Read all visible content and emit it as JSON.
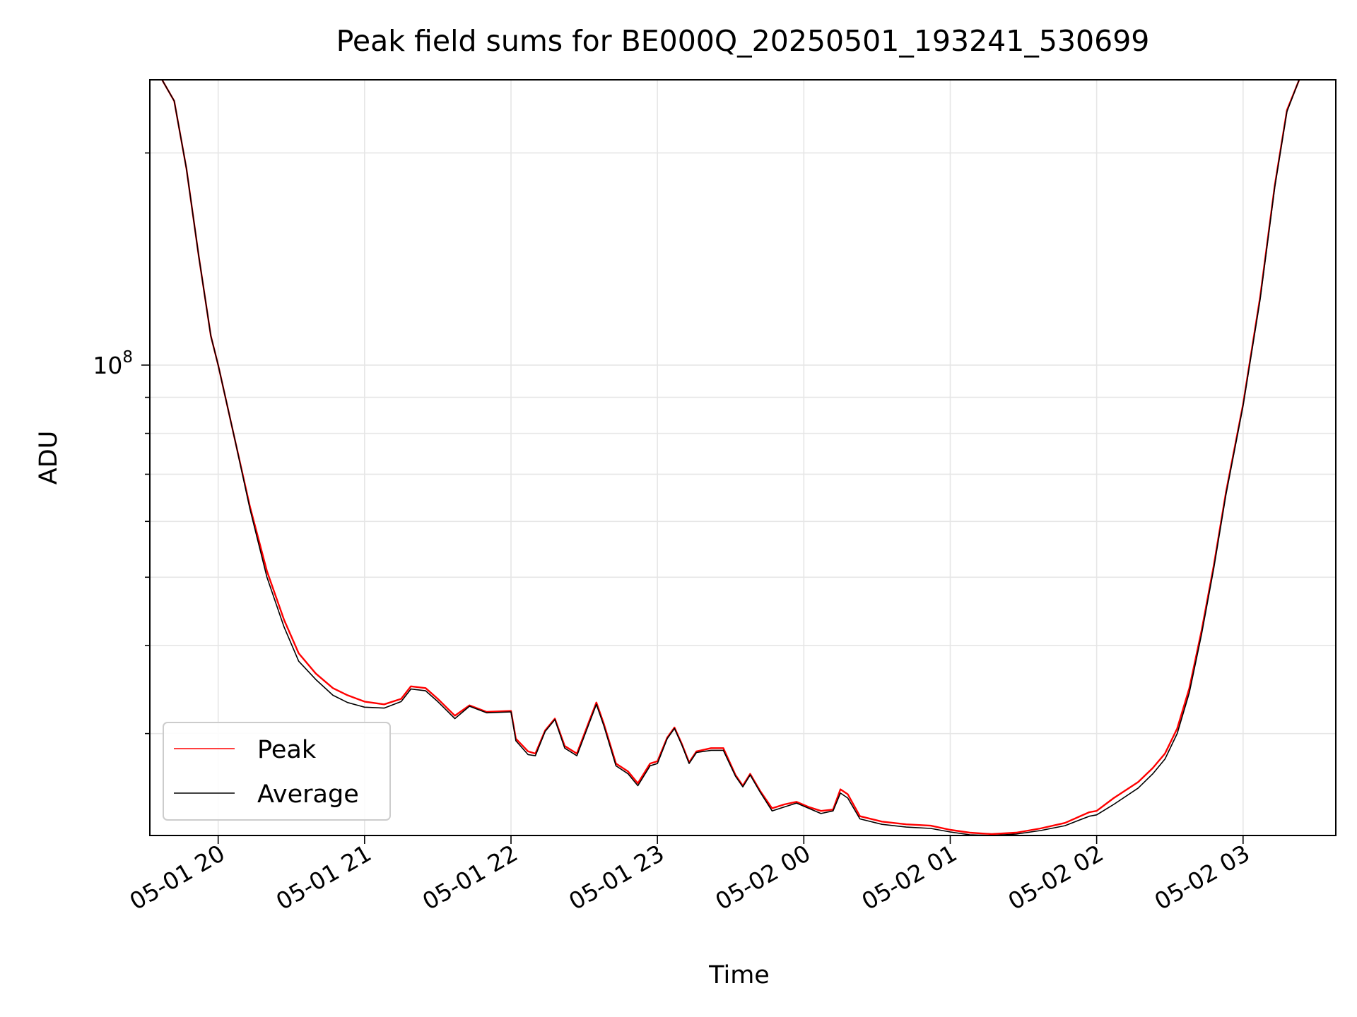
{
  "chart_data": {
    "type": "line",
    "title": "Peak field sums for BE000Q_20250501_193241_530699",
    "xlabel": "Time",
    "ylabel": "ADU",
    "y_scale": "log",
    "y_tick_labels": [
      {
        "value": 100000000,
        "label": "10^8"
      }
    ],
    "x_tick_labels": [
      "05-01 20",
      "05-01 21",
      "05-01 22",
      "05-01 23",
      "05-02 00",
      "05-02 01",
      "05-02 02",
      "05-02 03"
    ],
    "xlim": [
      "2025-05-01 19:32",
      "2025-05-02 03:38"
    ],
    "ylim": [
      21500000,
      254000000
    ],
    "grid": true,
    "legend": {
      "position": "lower-left"
    },
    "series": [
      {
        "name": "Peak",
        "color": "#ff0000",
        "points": [
          [
            "2025-05-01 19:37",
            254000000
          ],
          [
            "2025-05-01 19:42",
            237000000
          ],
          [
            "2025-05-01 19:47",
            190000000
          ],
          [
            "2025-05-01 19:52",
            143000000
          ],
          [
            "2025-05-01 19:57",
            110000000
          ],
          [
            "2025-05-01 20:00",
            100000000
          ],
          [
            "2025-05-01 20:07",
            78000000
          ],
          [
            "2025-05-01 20:13",
            63000000
          ],
          [
            "2025-05-01 20:20",
            51000000
          ],
          [
            "2025-05-01 20:27",
            43500000
          ],
          [
            "2025-05-01 20:33",
            39000000
          ],
          [
            "2025-05-01 20:40",
            36500000
          ],
          [
            "2025-05-01 20:47",
            34800000
          ],
          [
            "2025-05-01 20:53",
            34000000
          ],
          [
            "2025-05-01 21:00",
            33300000
          ],
          [
            "2025-05-01 21:08",
            33000000
          ],
          [
            "2025-05-01 21:15",
            33600000
          ],
          [
            "2025-05-01 21:19",
            35000000
          ],
          [
            "2025-05-01 21:25",
            34800000
          ],
          [
            "2025-05-01 21:30",
            33600000
          ],
          [
            "2025-05-01 21:37",
            31800000
          ],
          [
            "2025-05-01 21:43",
            32900000
          ],
          [
            "2025-05-01 21:50",
            32200000
          ],
          [
            "2025-05-01 22:00",
            32300000
          ],
          [
            "2025-05-01 22:02",
            29500000
          ],
          [
            "2025-05-01 22:07",
            28300000
          ],
          [
            "2025-05-01 22:10",
            28100000
          ],
          [
            "2025-05-01 22:14",
            30300000
          ],
          [
            "2025-05-01 22:18",
            31500000
          ],
          [
            "2025-05-01 22:22",
            28800000
          ],
          [
            "2025-05-01 22:27",
            28100000
          ],
          [
            "2025-05-01 22:32",
            31200000
          ],
          [
            "2025-05-01 22:35",
            33200000
          ],
          [
            "2025-05-01 22:38",
            31000000
          ],
          [
            "2025-05-01 22:43",
            27200000
          ],
          [
            "2025-05-01 22:48",
            26500000
          ],
          [
            "2025-05-01 22:52",
            25500000
          ],
          [
            "2025-05-01 22:57",
            27200000
          ],
          [
            "2025-05-01 23:00",
            27400000
          ],
          [
            "2025-05-01 23:04",
            29600000
          ],
          [
            "2025-05-01 23:07",
            30600000
          ],
          [
            "2025-05-01 23:10",
            29000000
          ],
          [
            "2025-05-01 23:13",
            27300000
          ],
          [
            "2025-05-01 23:16",
            28300000
          ],
          [
            "2025-05-01 23:22",
            28600000
          ],
          [
            "2025-05-01 23:27",
            28600000
          ],
          [
            "2025-05-01 23:32",
            26200000
          ],
          [
            "2025-05-01 23:35",
            25300000
          ],
          [
            "2025-05-01 23:38",
            26300000
          ],
          [
            "2025-05-01 23:42",
            24900000
          ],
          [
            "2025-05-01 23:47",
            23500000
          ],
          [
            "2025-05-01 23:52",
            23800000
          ],
          [
            "2025-05-01 23:57",
            24000000
          ],
          [
            "2025-05-02 00:02",
            23600000
          ],
          [
            "2025-05-02 00:07",
            23300000
          ],
          [
            "2025-05-02 00:12",
            23400000
          ],
          [
            "2025-05-02 00:15",
            25000000
          ],
          [
            "2025-05-02 00:18",
            24600000
          ],
          [
            "2025-05-02 00:23",
            22900000
          ],
          [
            "2025-05-02 00:32",
            22500000
          ],
          [
            "2025-05-02 00:42",
            22300000
          ],
          [
            "2025-05-02 00:52",
            22200000
          ],
          [
            "2025-05-02 01:00",
            21900000
          ],
          [
            "2025-05-02 01:08",
            21700000
          ],
          [
            "2025-05-02 01:17",
            21600000
          ],
          [
            "2025-05-02 01:27",
            21700000
          ],
          [
            "2025-05-02 01:37",
            22000000
          ],
          [
            "2025-05-02 01:47",
            22400000
          ],
          [
            "2025-05-02 01:57",
            23200000
          ],
          [
            "2025-05-02 02:00",
            23300000
          ],
          [
            "2025-05-02 02:07",
            24300000
          ],
          [
            "2025-05-02 02:17",
            25600000
          ],
          [
            "2025-05-02 02:23",
            26800000
          ],
          [
            "2025-05-02 02:28",
            28100000
          ],
          [
            "2025-05-02 02:33",
            30500000
          ],
          [
            "2025-05-02 02:38",
            34800000
          ],
          [
            "2025-05-02 02:43",
            42000000
          ],
          [
            "2025-05-02 02:48",
            52000000
          ],
          [
            "2025-05-02 02:53",
            66000000
          ],
          [
            "2025-05-02 03:00",
            88000000
          ],
          [
            "2025-05-02 03:07",
            125000000
          ],
          [
            "2025-05-02 03:13",
            180000000
          ],
          [
            "2025-05-02 03:18",
            230000000
          ],
          [
            "2025-05-02 03:23",
            254000000
          ]
        ]
      },
      {
        "name": "Average",
        "color": "#000000",
        "points": [
          [
            "2025-05-01 19:37",
            254000000
          ],
          [
            "2025-05-01 19:42",
            237000000
          ],
          [
            "2025-05-01 19:47",
            190000000
          ],
          [
            "2025-05-01 19:52",
            143000000
          ],
          [
            "2025-05-01 19:57",
            110000000
          ],
          [
            "2025-05-01 20:00",
            100000000
          ],
          [
            "2025-05-01 20:07",
            78000000
          ],
          [
            "2025-05-01 20:13",
            62500000
          ],
          [
            "2025-05-01 20:20",
            50000000
          ],
          [
            "2025-05-01 20:27",
            42500000
          ],
          [
            "2025-05-01 20:33",
            38000000
          ],
          [
            "2025-05-01 20:40",
            35800000
          ],
          [
            "2025-05-01 20:47",
            34000000
          ],
          [
            "2025-05-01 20:53",
            33200000
          ],
          [
            "2025-05-01 21:00",
            32700000
          ],
          [
            "2025-05-01 21:08",
            32600000
          ],
          [
            "2025-05-01 21:15",
            33300000
          ],
          [
            "2025-05-01 21:19",
            34700000
          ],
          [
            "2025-05-01 21:25",
            34500000
          ],
          [
            "2025-05-01 21:30",
            33300000
          ],
          [
            "2025-05-01 21:37",
            31500000
          ],
          [
            "2025-05-01 21:43",
            32800000
          ],
          [
            "2025-05-01 21:50",
            32100000
          ],
          [
            "2025-05-01 22:00",
            32200000
          ],
          [
            "2025-05-01 22:02",
            29300000
          ],
          [
            "2025-05-01 22:07",
            28000000
          ],
          [
            "2025-05-01 22:10",
            27900000
          ],
          [
            "2025-05-01 22:14",
            30200000
          ],
          [
            "2025-05-01 22:18",
            31400000
          ],
          [
            "2025-05-01 22:22",
            28600000
          ],
          [
            "2025-05-01 22:27",
            27900000
          ],
          [
            "2025-05-01 22:32",
            31000000
          ],
          [
            "2025-05-01 22:35",
            33000000
          ],
          [
            "2025-05-01 22:38",
            30800000
          ],
          [
            "2025-05-01 22:43",
            27000000
          ],
          [
            "2025-05-01 22:48",
            26300000
          ],
          [
            "2025-05-01 22:52",
            25300000
          ],
          [
            "2025-05-01 22:57",
            27000000
          ],
          [
            "2025-05-01 23:00",
            27200000
          ],
          [
            "2025-05-01 23:04",
            29500000
          ],
          [
            "2025-05-01 23:07",
            30500000
          ],
          [
            "2025-05-01 23:10",
            28900000
          ],
          [
            "2025-05-01 23:13",
            27200000
          ],
          [
            "2025-05-01 23:16",
            28200000
          ],
          [
            "2025-05-01 23:22",
            28400000
          ],
          [
            "2025-05-01 23:27",
            28400000
          ],
          [
            "2025-05-01 23:32",
            26100000
          ],
          [
            "2025-05-01 23:35",
            25200000
          ],
          [
            "2025-05-01 23:38",
            26200000
          ],
          [
            "2025-05-01 23:42",
            24800000
          ],
          [
            "2025-05-01 23:47",
            23300000
          ],
          [
            "2025-05-01 23:52",
            23600000
          ],
          [
            "2025-05-01 23:57",
            23900000
          ],
          [
            "2025-05-02 00:02",
            23500000
          ],
          [
            "2025-05-02 00:07",
            23100000
          ],
          [
            "2025-05-02 00:12",
            23300000
          ],
          [
            "2025-05-02 00:15",
            24700000
          ],
          [
            "2025-05-02 00:18",
            24300000
          ],
          [
            "2025-05-02 00:23",
            22700000
          ],
          [
            "2025-05-02 00:32",
            22300000
          ],
          [
            "2025-05-02 00:42",
            22100000
          ],
          [
            "2025-05-02 00:52",
            22000000
          ],
          [
            "2025-05-02 01:00",
            21750000
          ],
          [
            "2025-05-02 01:08",
            21550000
          ],
          [
            "2025-05-02 01:17",
            21500000
          ],
          [
            "2025-05-02 01:27",
            21600000
          ],
          [
            "2025-05-02 01:37",
            21850000
          ],
          [
            "2025-05-02 01:47",
            22200000
          ],
          [
            "2025-05-02 01:57",
            22900000
          ],
          [
            "2025-05-02 02:00",
            23000000
          ],
          [
            "2025-05-02 02:07",
            23800000
          ],
          [
            "2025-05-02 02:17",
            25100000
          ],
          [
            "2025-05-02 02:23",
            26300000
          ],
          [
            "2025-05-02 02:28",
            27600000
          ],
          [
            "2025-05-02 02:33",
            30000000
          ],
          [
            "2025-05-02 02:38",
            34300000
          ],
          [
            "2025-05-02 02:43",
            41500000
          ],
          [
            "2025-05-02 02:48",
            51500000
          ],
          [
            "2025-05-02 02:53",
            65500000
          ],
          [
            "2025-05-02 03:00",
            87500000
          ],
          [
            "2025-05-02 03:07",
            124000000
          ],
          [
            "2025-05-02 03:13",
            179000000
          ],
          [
            "2025-05-02 03:18",
            229000000
          ],
          [
            "2025-05-02 03:23",
            254000000
          ]
        ]
      }
    ]
  }
}
